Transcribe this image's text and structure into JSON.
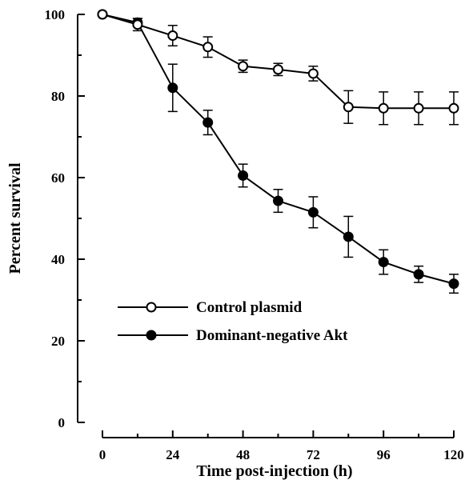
{
  "chart_data": {
    "type": "line",
    "xlabel": "Time post-injection (h)",
    "ylabel": "Percent survival",
    "xlim": [
      0,
      120
    ],
    "ylim": [
      0,
      100
    ],
    "xticks": [
      0,
      24,
      48,
      72,
      96,
      120
    ],
    "yticks": [
      0,
      20,
      40,
      60,
      80,
      100
    ],
    "xtick_labels": [
      "0",
      "24",
      "48",
      "72",
      "96",
      "120"
    ],
    "ytick_labels": [
      "0",
      "20",
      "40",
      "60",
      "80",
      "100"
    ],
    "grid": false,
    "legend_position": "lower-left",
    "series": [
      {
        "name": "Control plasmid",
        "marker": "open-circle",
        "color": "#000000",
        "x": [
          0,
          12,
          24,
          36,
          48,
          60,
          72,
          84,
          96,
          108,
          120
        ],
        "y": [
          100,
          97.5,
          94.8,
          92.0,
          87.3,
          86.5,
          85.5,
          77.3,
          77.0,
          77.0,
          77.0
        ],
        "error": [
          0,
          1.5,
          2.5,
          2.5,
          1.5,
          1.5,
          1.8,
          4.0,
          4.0,
          4.0,
          4.0
        ]
      },
      {
        "name": "Dominant-negative Akt",
        "marker": "filled-circle",
        "color": "#000000",
        "x": [
          0,
          12,
          24,
          36,
          48,
          60,
          72,
          84,
          96,
          108,
          120
        ],
        "y": [
          100,
          98.0,
          82.0,
          73.5,
          60.5,
          54.3,
          51.5,
          45.5,
          39.3,
          36.3,
          34.0
        ],
        "error": [
          0,
          1.0,
          5.8,
          3.0,
          2.8,
          2.8,
          3.8,
          5.0,
          3.0,
          2.0,
          2.3
        ]
      }
    ]
  }
}
